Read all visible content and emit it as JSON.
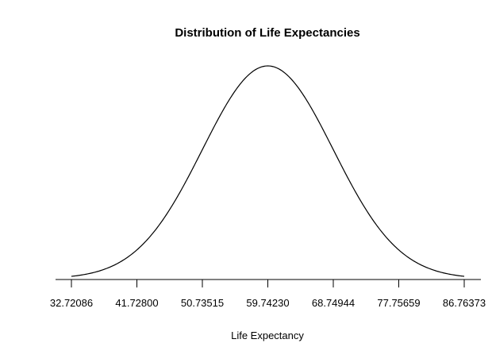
{
  "chart_data": {
    "type": "line",
    "title": "Distribution of Life Expectancies",
    "xlabel": "Life Expectancy",
    "ylabel": "",
    "distribution": "normal density",
    "mean": 59.7423,
    "sd": 9.00714,
    "xlim": [
      32.72086,
      86.76373
    ],
    "x_ticks": [
      "32.72086",
      "41.72800",
      "50.73515",
      "59.74230",
      "68.74944",
      "77.75659",
      "86.76373"
    ],
    "x_tick_values": [
      32.72086,
      41.728,
      50.73515,
      59.7423,
      68.74944,
      77.75659,
      86.76373
    ],
    "y_axis_shown": false,
    "grid": false,
    "line_color": "#000000"
  }
}
